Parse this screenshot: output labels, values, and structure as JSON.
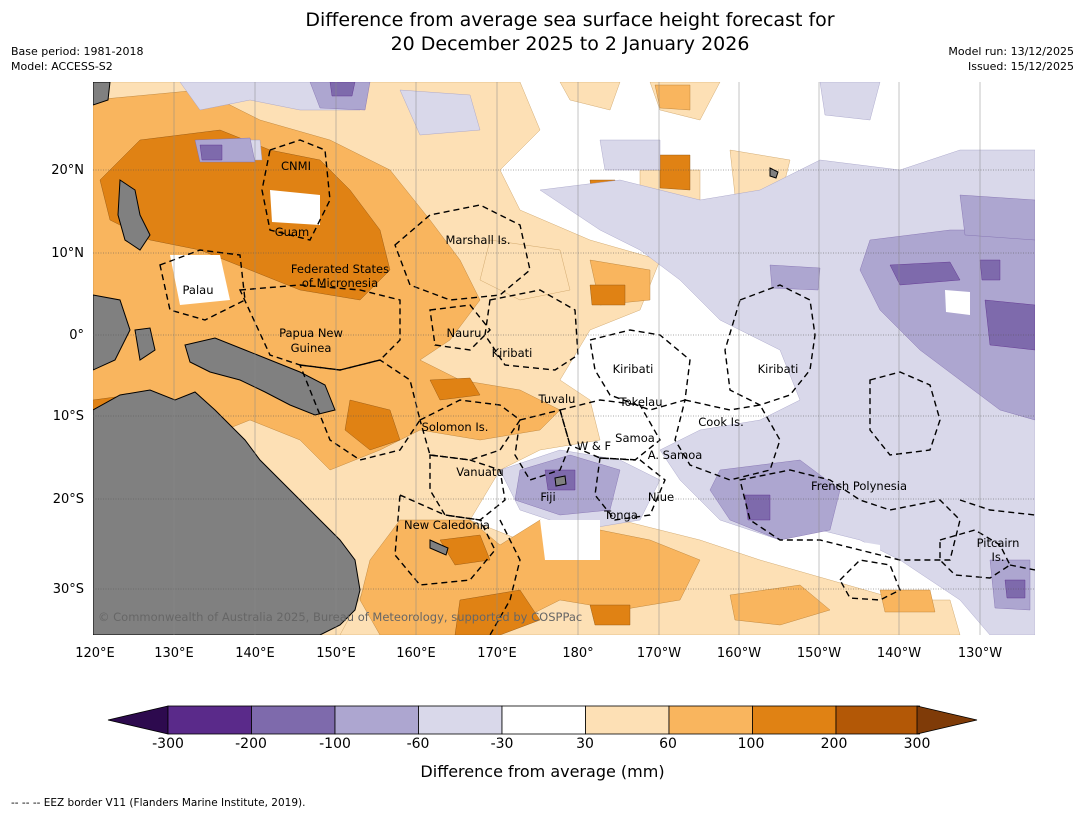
{
  "title": {
    "line1": "Difference from average sea surface height forecast for",
    "line2": "20 December 2025 to 2 January 2026"
  },
  "meta": {
    "base_period": "Base period: 1981-2018",
    "model": "Model: ACCESS-S2",
    "model_run": "Model run: 13/12/2025",
    "issued": "Issued: 15/12/2025"
  },
  "axes": {
    "lon_labels": [
      "120°E",
      "130°E",
      "140°E",
      "150°E",
      "160°E",
      "170°E",
      "180°",
      "170°W",
      "160°W",
      "150°W",
      "140°W",
      "130°W"
    ],
    "lat_labels": [
      "20°N",
      "10°N",
      "0°",
      "10°S",
      "20°S",
      "30°S"
    ]
  },
  "places": [
    "CNMI",
    "Guam",
    "Marshall Is.",
    "Federated States",
    "of Micronesia",
    "Palau",
    "Papua New",
    "Guinea",
    "Nauru",
    "Kiribati",
    "Kiribati",
    "Kiribati",
    "Tuvalu",
    "Tokelau",
    "Cook Is.",
    "Solomon Is.",
    "Samoa",
    "W & F",
    "A. Samoa",
    "Vanuatu",
    "Fiji",
    "Niue",
    "French Polynesia",
    "Tonga",
    "New Caledonia",
    "Pitcairn",
    "Is."
  ],
  "copyright": "© Commonwealth of Australia 2025, Bureau of Meteorology, supported by COSPPac",
  "colorbar": {
    "ticks": [
      "-300",
      "-200",
      "-100",
      "-60",
      "-30",
      "30",
      "60",
      "100",
      "200",
      "300"
    ],
    "colors": {
      "below": "#2d0a4e",
      "bins": [
        "#5a2a8a",
        "#7e6aac",
        "#ada6d0",
        "#d9d8ea",
        "#ffffff",
        "#fde0b5",
        "#f9b55e",
        "#e08214",
        "#b35806"
      ],
      "above": "#7f3b08"
    },
    "label": "Difference from average (mm)"
  },
  "footnote": "--  --  -- EEZ border V11 (Flanders Marine Institute, 2019).",
  "style": {
    "land": "#808080",
    "grid": "#555555"
  }
}
